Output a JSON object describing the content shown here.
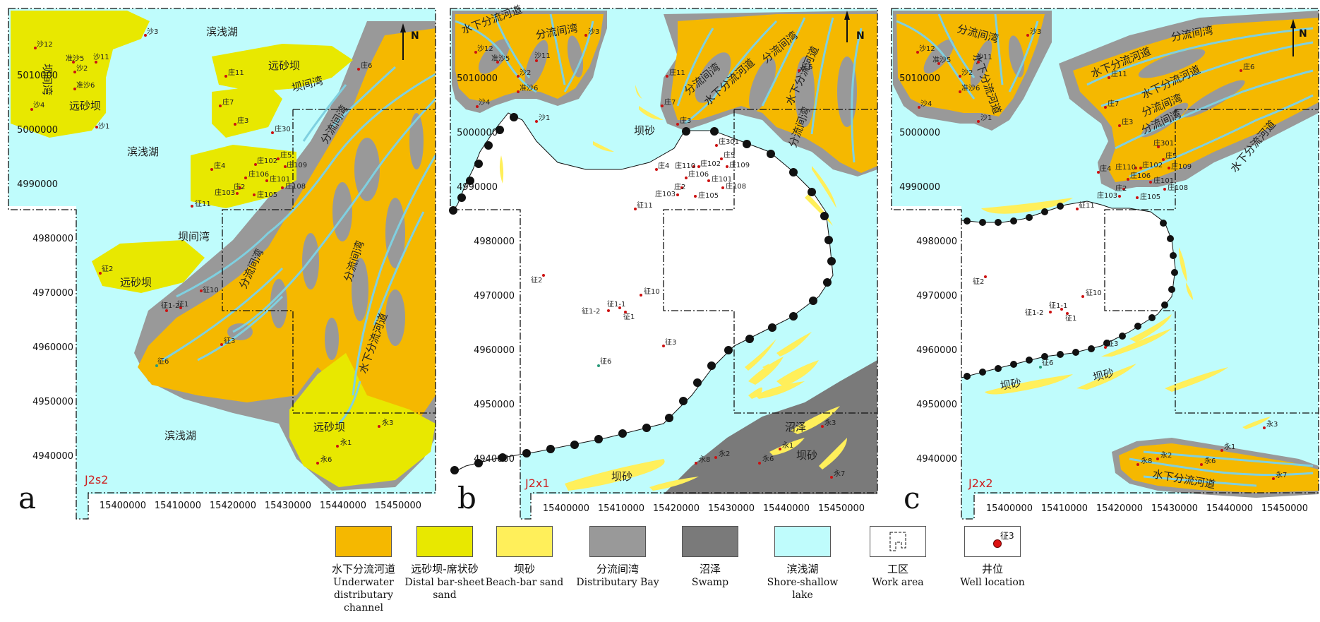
{
  "panels": [
    {
      "letter": "a",
      "stage": "J2s2",
      "north": "N",
      "y_ticks": [
        "5010000",
        "5000000",
        "4990000",
        "4980000",
        "4970000",
        "4960000",
        "4950000",
        "4940000"
      ],
      "x_ticks": [
        "15400000",
        "15410000",
        "15420000",
        "15430000",
        "15440000",
        "15450000"
      ],
      "zone_labels": [
        "滨浅湖",
        "滨浅湖",
        "滨浅湖",
        "远砂坝",
        "远砂坝",
        "远砂坝",
        "远砂坝",
        "坝间湾",
        "坝间湾",
        "坝间湾",
        "分流间湾",
        "分流间湾",
        "分流间湾",
        "水下分流河道"
      ],
      "wells": [
        "沙3",
        "沙12",
        "准沙5",
        "沙11",
        "沙2",
        "准沙6",
        "沙4",
        "沙1",
        "庄11",
        "庄7",
        "庄3",
        "庄30",
        "庄4",
        "庄5",
        "庄102",
        "庄109",
        "庄106",
        "庄101",
        "庄2",
        "庄108",
        "庄103",
        "庄105",
        "征11",
        "征2",
        "征10",
        "征1",
        "征1-2",
        "征3",
        "征6",
        "庄6",
        "永3",
        "永1",
        "永6"
      ]
    },
    {
      "letter": "b",
      "stage": "J2x1",
      "north": "N",
      "y_ticks": [
        "5010000",
        "5000000",
        "4990000",
        "4980000",
        "4970000",
        "4960000",
        "4950000",
        "4940000"
      ],
      "x_ticks": [
        "15400000",
        "15410000",
        "15420000",
        "15430000",
        "15440000",
        "15450000"
      ],
      "zone_labels": [
        "水下分流河道",
        "分流间湾",
        "分流间湾",
        "分流间湾",
        "水下分流河道",
        "水下分流河道",
        "分流间湾",
        "坝砂",
        "坝砂",
        "坝砂",
        "沼泽"
      ],
      "wells": [
        "沙3",
        "沙12",
        "准沙5",
        "沙11",
        "沙2",
        "准沙6",
        "沙4",
        "沙1",
        "庄11",
        "庄7",
        "庄3",
        "庄301",
        "庄4",
        "庄5",
        "庄110",
        "庄102",
        "庄109",
        "庄106",
        "庄101",
        "庄2",
        "庄108",
        "庄103",
        "庄105",
        "征11",
        "征2",
        "征10",
        "征1-1",
        "征1-2",
        "征1",
        "征3",
        "征6",
        "庄6",
        "永3",
        "永1",
        "永6",
        "永2",
        "永8",
        "永7"
      ]
    },
    {
      "letter": "c",
      "stage": "J2x2",
      "north": "N",
      "y_ticks": [
        "5010000",
        "5000000",
        "4990000",
        "4980000",
        "4970000",
        "4960000",
        "4950000",
        "4940000"
      ],
      "x_ticks": [
        "15400000",
        "15410000",
        "15420000",
        "15430000",
        "15440000",
        "15450000"
      ],
      "zone_labels": [
        "分流间湾",
        "分流间湾",
        "水下分流河道",
        "水下分流河道",
        "分流间湾",
        "水下分流河道",
        "水下分流河道",
        "分流间湾",
        "坝砂",
        "坝砂",
        "水下分流河道"
      ],
      "wells": [
        "沙3",
        "沙12",
        "准沙5",
        "沙11",
        "沙2",
        "准沙6",
        "沙4",
        "沙1",
        "庄11",
        "庄7",
        "庄3",
        "庄301",
        "庄4",
        "庄5",
        "庄110",
        "庄102",
        "庄109",
        "庄106",
        "庄101",
        "庄2",
        "庄108",
        "庄103",
        "庄105",
        "征11",
        "征2",
        "征10",
        "征1-1",
        "征1-2",
        "征1",
        "征3",
        "征6",
        "庄6",
        "永3",
        "永1",
        "永6",
        "永2",
        "永8",
        "永7"
      ]
    }
  ],
  "legend": [
    {
      "zh": "水下分流河道",
      "en": "Underwater distributary channel",
      "color": "#f5b800"
    },
    {
      "zh": "远砂坝-席状砂",
      "en": "Distal bar-sheet sand",
      "color": "#e8e800"
    },
    {
      "zh": "坝砂",
      "en": "Beach-bar sand",
      "color": "#ffef5a"
    },
    {
      "zh": "分流间湾",
      "en": "Distributary Bay",
      "color": "#999999"
    },
    {
      "zh": "沼泽",
      "en": "Swamp",
      "color": "#7a7a7a"
    },
    {
      "zh": "滨浅湖",
      "en": "Shore-shallow lake",
      "color": "#bffcfc"
    },
    {
      "zh": "工区",
      "en": "Work area",
      "color": "#ffffff"
    },
    {
      "zh": "井位",
      "en": "Well location",
      "color": "#ffffff",
      "marker": "征3"
    }
  ],
  "colors": {
    "channel": "#f5b800",
    "distal_bar": "#e8e800",
    "beach_bar": "#ffef5a",
    "bay": "#999999",
    "swamp": "#7a7a7a",
    "lake": "#bffcfc",
    "channel_line": "#7fd0e0",
    "well": "#cc1111",
    "stage_label": "#cc2222"
  }
}
